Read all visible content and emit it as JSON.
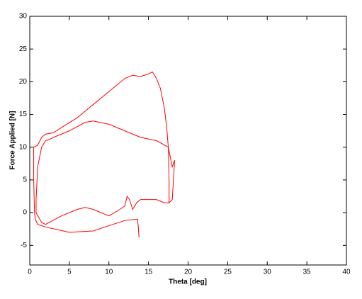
{
  "chart_data": {
    "type": "line",
    "xlabel": "Theta [deg]",
    "ylabel": "Force Applied [N]",
    "x": [
      13.8,
      13.7,
      13.6,
      12,
      10,
      8,
      5,
      2,
      1,
      0.7,
      0.6,
      0.5,
      0.5,
      1,
      1.5,
      2,
      3,
      4,
      6,
      8,
      10,
      11,
      12,
      13,
      14,
      15,
      15.5,
      16,
      16.5,
      17,
      17.3,
      17.5,
      17.6,
      17.6,
      18,
      18.3,
      18,
      17.5,
      16,
      14,
      12,
      10,
      8,
      7,
      5,
      3,
      2.5,
      2,
      1.5,
      1,
      0.8,
      0.8,
      1.5,
      2,
      4,
      6,
      7,
      8,
      9,
      10,
      11,
      12,
      12.3,
      12.6,
      13,
      13.5,
      14,
      16,
      17,
      17.6
    ],
    "series": [
      {
        "color": "#ff0000",
        "values": [
          -3.8,
          -2,
          -1,
          -1.2,
          -2,
          -2.8,
          -3,
          -2.2,
          -1.8,
          -1,
          0,
          5,
          10,
          10.3,
          11.5,
          12,
          12.2,
          13,
          14.5,
          16.5,
          18.5,
          19.5,
          20.5,
          21,
          20.8,
          21.2,
          21.5,
          20.5,
          19,
          16,
          13,
          10,
          5,
          1.5,
          2,
          8,
          7,
          10,
          11,
          11.5,
          12.5,
          13.5,
          14,
          13.8,
          12.5,
          11.5,
          11.2,
          11,
          10,
          7,
          2,
          0,
          -1.5,
          -1.8,
          -0.5,
          0.5,
          0.8,
          0.5,
          0,
          -0.5,
          0.2,
          1,
          2.5,
          2,
          0.5,
          1.5,
          2,
          2,
          1.5,
          1.5
        ]
      }
    ],
    "xlim": [
      0,
      40
    ],
    "xticks": [
      0,
      5,
      10,
      15,
      20,
      25,
      30,
      35,
      40
    ],
    "ylim": [
      -8,
      30
    ],
    "yticks": [
      -5,
      0,
      5,
      10,
      15,
      20,
      25,
      30
    ]
  }
}
